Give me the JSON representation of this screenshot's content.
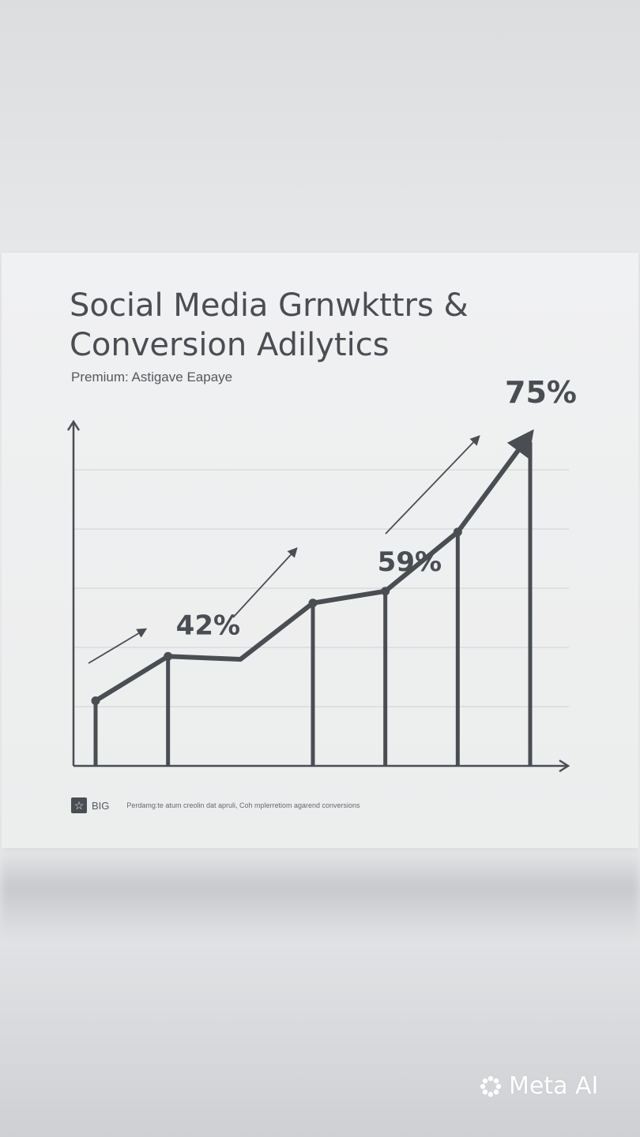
{
  "header": {
    "title": "Social Media Grnwkttrs & Conversion Adilytics",
    "subtitle": "Premium: Astigave Eapaye"
  },
  "chart_data": {
    "type": "line",
    "title": "Social Media Grnwkttrs & Conversion Adilytics",
    "xlabel": "",
    "ylabel": "",
    "x": [
      1,
      2,
      3,
      4,
      5,
      6,
      7
    ],
    "values": [
      22,
      37,
      36,
      55,
      59,
      79,
      112
    ],
    "ylim": [
      0,
      120
    ],
    "grid": true,
    "annotations": [
      {
        "text": "42%",
        "point": 1
      },
      {
        "text": "59%",
        "point": 4
      },
      {
        "text": "75%",
        "point": 6
      }
    ],
    "colors": {
      "line": "#4a4d52",
      "grid": "#cfd0d2",
      "axis": "#4a4d52"
    }
  },
  "footer": {
    "badge_icon": "star-icon",
    "brand": "BIG",
    "description": "Perdamg:te atum creolin dat apruli, Coh mplerretiom agarend conversions"
  },
  "watermark": {
    "label": "Meta AI"
  }
}
